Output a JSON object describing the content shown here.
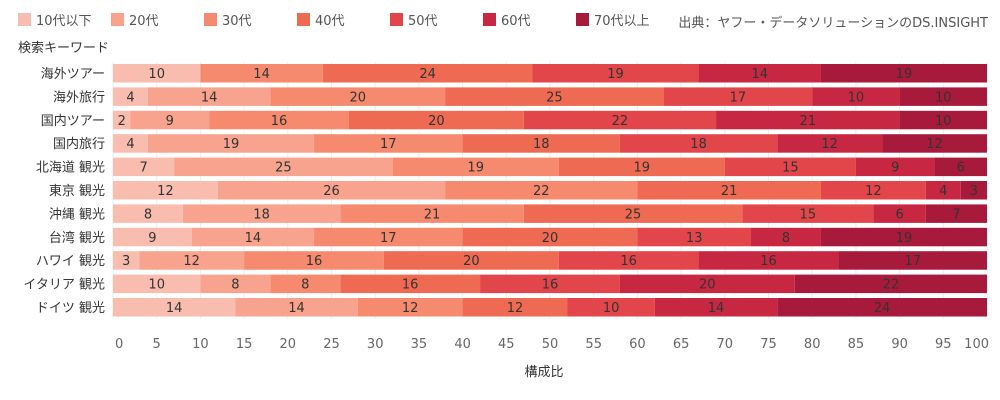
{
  "source_note": "出典：ヤフー・データソリューションのDS.INSIGHT",
  "chart_data": {
    "type": "bar",
    "orientation": "horizontal",
    "stacked": true,
    "y_axis_title": "検索キーワード",
    "xlabel": "構成比",
    "xlim": [
      0,
      100
    ],
    "xticks": [
      0,
      5,
      10,
      15,
      20,
      25,
      30,
      35,
      40,
      45,
      50,
      55,
      60,
      65,
      70,
      75,
      80,
      85,
      90,
      95,
      100
    ],
    "legend_position": "top-left",
    "categories": [
      "海外ツアー",
      "海外旅行",
      "国内ツアー",
      "国内旅行",
      "北海道 観光",
      "東京 観光",
      "沖縄 観光",
      "台湾 観光",
      "ハワイ 観光",
      "イタリア 観光",
      "ドイツ 観光"
    ],
    "series": [
      {
        "name": "10代以下",
        "color": "#f9bdb0",
        "values": [
          10,
          4,
          2,
          4,
          7,
          12,
          8,
          9,
          3,
          10,
          14
        ]
      },
      {
        "name": "20代",
        "color": "#f7a38e",
        "values": [
          0,
          14,
          9,
          19,
          25,
          26,
          18,
          14,
          12,
          8,
          14
        ]
      },
      {
        "name": "30代",
        "color": "#f68a6f",
        "values": [
          14,
          20,
          16,
          17,
          19,
          22,
          21,
          17,
          16,
          8,
          12
        ]
      },
      {
        "name": "40代",
        "color": "#ef6a52",
        "values": [
          24,
          25,
          20,
          18,
          19,
          21,
          25,
          20,
          20,
          16,
          12
        ]
      },
      {
        "name": "50代",
        "color": "#e2454a",
        "values": [
          19,
          17,
          22,
          18,
          15,
          12,
          15,
          13,
          16,
          16,
          10
        ]
      },
      {
        "name": "60代",
        "color": "#c82742",
        "values": [
          14,
          10,
          21,
          12,
          9,
          4,
          6,
          8,
          16,
          20,
          14
        ]
      },
      {
        "name": "70代以上",
        "color": "#a81a3b",
        "values": [
          19,
          10,
          10,
          12,
          6,
          3,
          7,
          19,
          17,
          22,
          24
        ]
      }
    ]
  }
}
